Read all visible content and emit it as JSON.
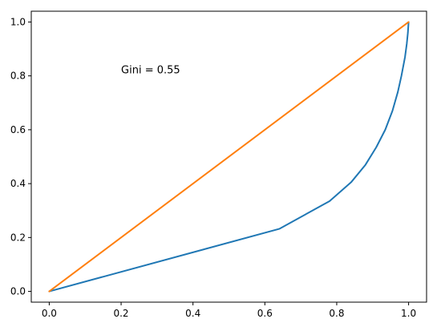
{
  "chart_data": {
    "type": "line",
    "title": "",
    "xlabel": "",
    "ylabel": "",
    "xlim": [
      -0.05,
      1.05
    ],
    "ylim": [
      -0.04,
      1.04
    ],
    "grid": false,
    "xticks": [
      0.0,
      0.2,
      0.4,
      0.6,
      0.8,
      1.0
    ],
    "yticks": [
      0.0,
      0.2,
      0.4,
      0.6,
      0.8,
      1.0
    ],
    "xtick_labels": [
      "0.0",
      "0.2",
      "0.4",
      "0.6",
      "0.8",
      "1.0"
    ],
    "ytick_labels": [
      "0.0",
      "0.2",
      "0.4",
      "0.6",
      "0.8",
      "1.0"
    ],
    "annotations": [
      {
        "text": "Gini = 0.55",
        "x": 0.2,
        "y": 0.81
      }
    ],
    "series": [
      {
        "color": "#1f77b4",
        "x": [
          0.0,
          0.64,
          0.78,
          0.84,
          0.88,
          0.91,
          0.935,
          0.955,
          0.97,
          0.98,
          0.99,
          0.995,
          0.998,
          1.0
        ],
        "y": [
          0.0,
          0.232,
          0.335,
          0.405,
          0.47,
          0.535,
          0.6,
          0.67,
          0.74,
          0.8,
          0.87,
          0.92,
          0.96,
          1.0
        ]
      },
      {
        "color": "#ff7f0e",
        "x": [
          0.0,
          1.0
        ],
        "y": [
          0.0,
          1.0
        ]
      }
    ]
  }
}
